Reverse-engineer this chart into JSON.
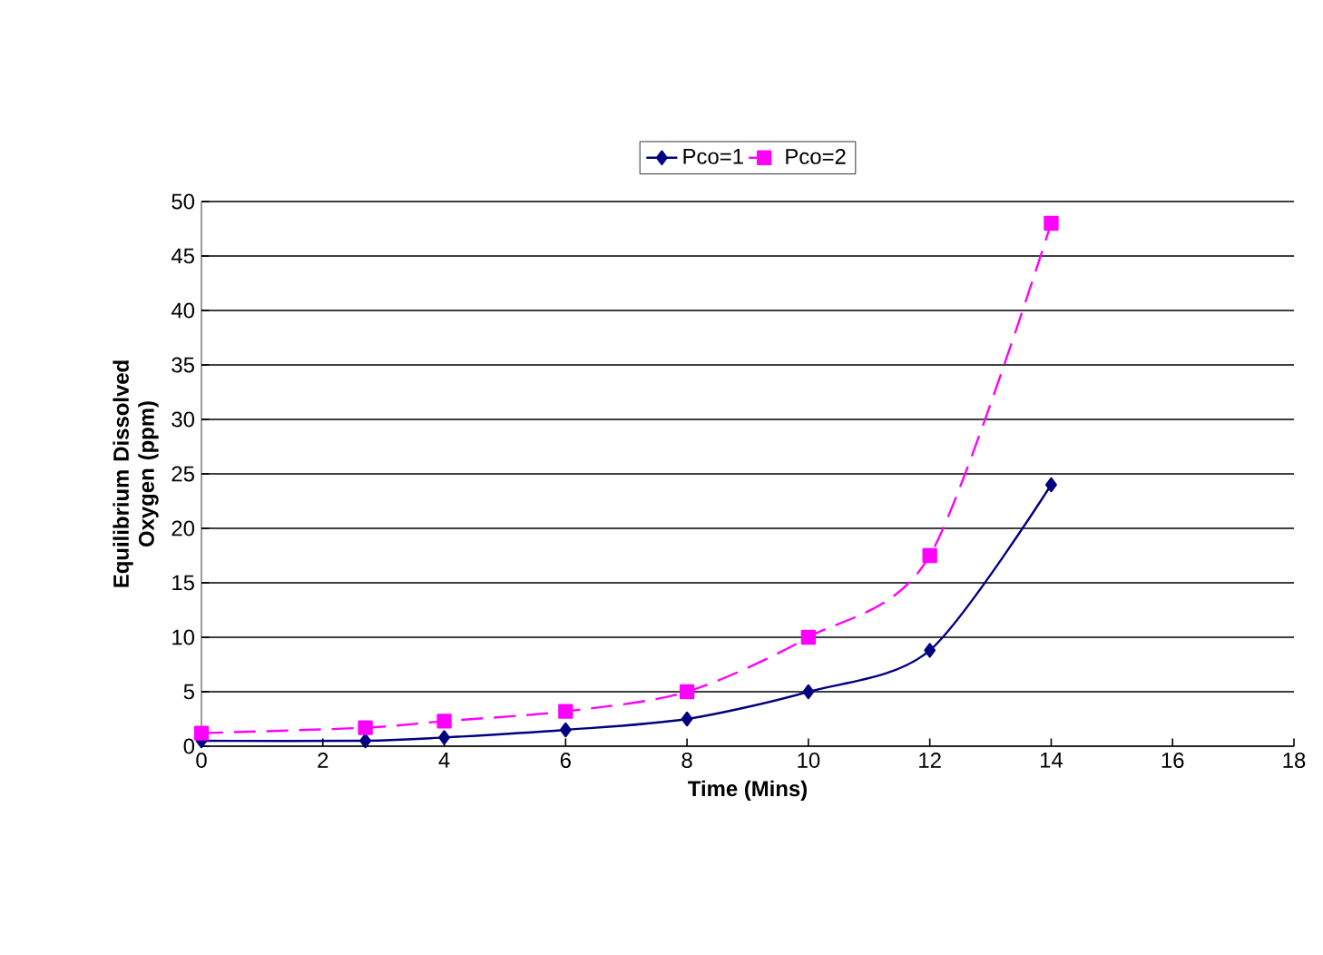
{
  "chart_data": {
    "type": "line",
    "xlabel": "Time (Mins)",
    "ylabel": "Equilibrium Dissolved Oxygen (ppm)",
    "x": [
      0,
      2.7,
      4,
      6,
      8,
      10,
      12,
      14
    ],
    "series": [
      {
        "name": "Pco=1",
        "color": "#000080",
        "marker": "diamond",
        "line_style": "solid",
        "values": [
          0.5,
          0.5,
          0.8,
          1.5,
          2.5,
          5,
          8.8,
          24
        ]
      },
      {
        "name": "Pco=2",
        "color": "#ff00ff",
        "marker": "square",
        "line_style": "dashed",
        "values": [
          1.2,
          1.7,
          2.3,
          3.2,
          5,
          10,
          17.5,
          48
        ]
      }
    ],
    "xlim": [
      0,
      18
    ],
    "xticks": [
      0,
      2,
      4,
      6,
      8,
      10,
      12,
      14,
      16,
      18
    ],
    "ylim": [
      0,
      50
    ],
    "yticks": [
      0,
      5,
      10,
      15,
      20,
      25,
      30,
      35,
      40,
      45,
      50
    ],
    "grid": "y",
    "legend": "top"
  }
}
